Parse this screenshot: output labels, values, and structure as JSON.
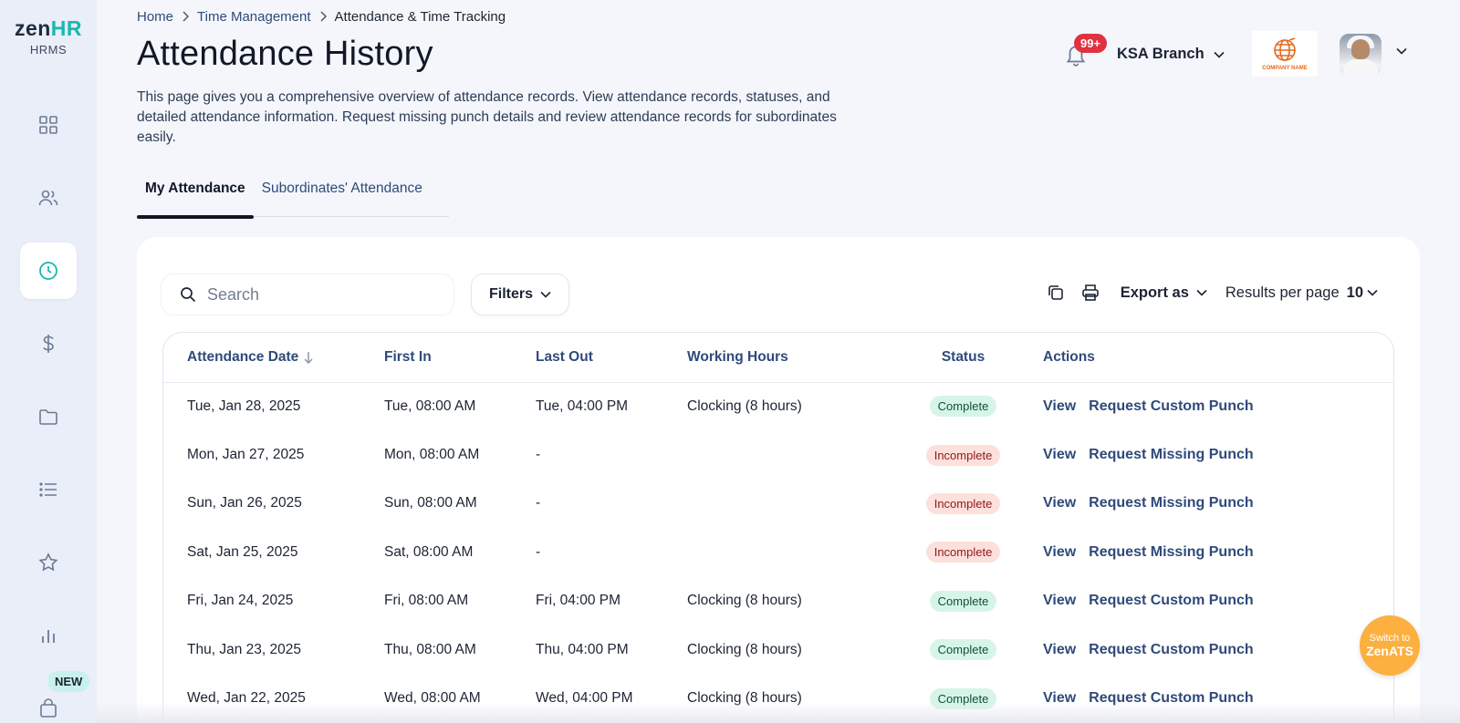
{
  "app": {
    "brand_main": "zen",
    "brand_accent": "HR",
    "brand_sub": "HRMS",
    "accent_color": "#19b7b0"
  },
  "sidebar": {
    "items": [
      {
        "icon": "dashboard-icon"
      },
      {
        "icon": "people-icon"
      },
      {
        "icon": "clock-icon",
        "active": true
      },
      {
        "icon": "dollar-icon"
      },
      {
        "icon": "folder-icon"
      },
      {
        "icon": "list-icon"
      },
      {
        "icon": "star-icon"
      },
      {
        "icon": "bar-chart-icon"
      },
      {
        "icon": "shopping-bag-icon"
      }
    ],
    "new_badge": "NEW"
  },
  "breadcrumb": {
    "items": [
      "Home",
      "Time Management"
    ],
    "current": "Attendance & Time Tracking"
  },
  "page": {
    "title": "Attendance History",
    "description": "This page gives you a comprehensive overview of attendance records. View attendance records, statuses, and detailed attendance information. Request missing punch details and review attendance records for subordinates easily."
  },
  "header": {
    "notification_count": "99+",
    "branch": "KSA Branch",
    "company_logo_text": "COMPANY NAME"
  },
  "tabs": [
    {
      "label": "My Attendance",
      "active": true
    },
    {
      "label": "Subordinates' Attendance",
      "active": false
    }
  ],
  "toolbar": {
    "search_placeholder": "Search",
    "filters_label": "Filters",
    "export_label": "Export as",
    "results_per_page_label": "Results per page",
    "results_per_page_value": "10"
  },
  "table": {
    "columns": [
      "Attendance Date",
      "First In",
      "Last Out",
      "Working Hours",
      "Status",
      "Actions"
    ],
    "rows": [
      {
        "date": "Tue, Jan 28, 2025",
        "first_in": "Tue, 08:00 AM",
        "last_out": "Tue, 04:00 PM",
        "working_hours": "Clocking (8 hours)",
        "status": "Complete",
        "status_type": "complete",
        "view": "View",
        "request": "Request Custom Punch"
      },
      {
        "date": "Mon, Jan 27, 2025",
        "first_in": "Mon, 08:00 AM",
        "last_out": "-",
        "working_hours": "",
        "status": "Incomplete",
        "status_type": "incomplete",
        "view": "View",
        "request": "Request Missing Punch"
      },
      {
        "date": "Sun, Jan 26, 2025",
        "first_in": "Sun, 08:00 AM",
        "last_out": "-",
        "working_hours": "",
        "status": "Incomplete",
        "status_type": "incomplete",
        "view": "View",
        "request": "Request Missing Punch"
      },
      {
        "date": "Sat, Jan 25, 2025",
        "first_in": "Sat, 08:00 AM",
        "last_out": "-",
        "working_hours": "",
        "status": "Incomplete",
        "status_type": "incomplete",
        "view": "View",
        "request": "Request Missing Punch"
      },
      {
        "date": "Fri, Jan 24, 2025",
        "first_in": "Fri, 08:00 AM",
        "last_out": "Fri, 04:00 PM",
        "working_hours": "Clocking (8 hours)",
        "status": "Complete",
        "status_type": "complete",
        "view": "View",
        "request": "Request Custom Punch"
      },
      {
        "date": "Thu, Jan 23, 2025",
        "first_in": "Thu, 08:00 AM",
        "last_out": "Thu, 04:00 PM",
        "working_hours": "Clocking (8 hours)",
        "status": "Complete",
        "status_type": "complete",
        "view": "View",
        "request": "Request Custom Punch"
      },
      {
        "date": "Wed, Jan 22, 2025",
        "first_in": "Wed, 08:00 AM",
        "last_out": "Wed, 04:00 PM",
        "working_hours": "Clocking (8 hours)",
        "status": "Complete",
        "status_type": "complete",
        "view": "View",
        "request": "Request Custom Punch"
      }
    ]
  },
  "switch_button": {
    "line1": "Switch to",
    "line2": "ZenATS"
  }
}
